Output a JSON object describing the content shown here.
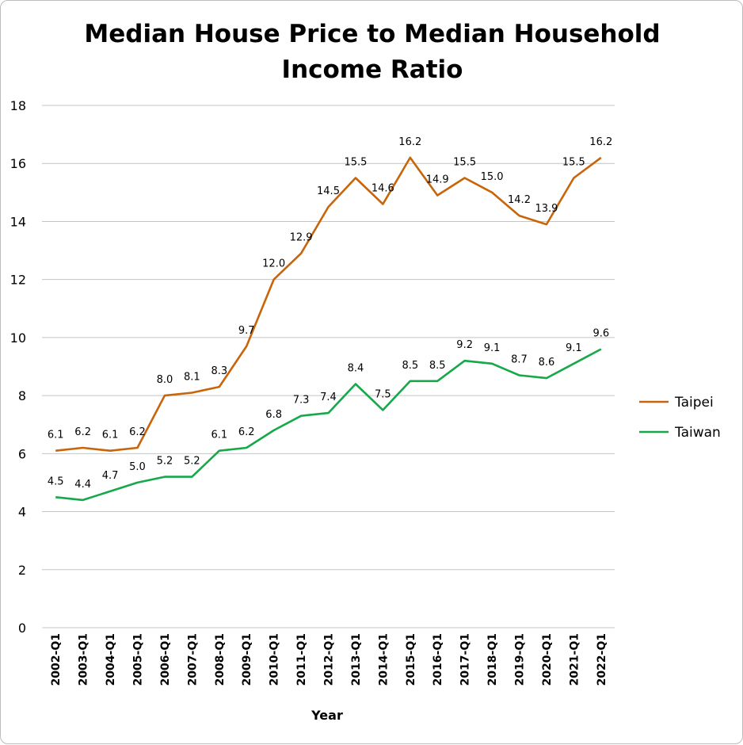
{
  "chart_data": {
    "type": "line",
    "title_lines": [
      "Median House Price to Median Household",
      "Income Ratio"
    ],
    "xlabel": "Year",
    "ylabel": "",
    "ylim": [
      0,
      18
    ],
    "yticks": [
      "0",
      "2",
      "4",
      "6",
      "8",
      "10",
      "12",
      "14",
      "16",
      "18"
    ],
    "grid": true,
    "legend_position": "right",
    "categories": [
      "2002-Q1",
      "2003-Q1",
      "2004-Q1",
      "2005-Q1",
      "2006-Q1",
      "2007-Q1",
      "2008-Q1",
      "2009-Q1",
      "2010-Q1",
      "2011-Q1",
      "2012-Q1",
      "2013-Q1",
      "2014-Q1",
      "2015-Q1",
      "2016-Q1",
      "2017-Q1",
      "2018-Q1",
      "2019-Q1",
      "2020-Q1",
      "2021-Q1",
      "2022-Q1"
    ],
    "series": [
      {
        "name": "Taipei",
        "color": "#c8650a",
        "values": [
          6.1,
          6.2,
          6.1,
          6.2,
          8.0,
          8.1,
          8.3,
          9.7,
          12.0,
          12.9,
          14.5,
          15.5,
          14.6,
          16.2,
          14.9,
          15.5,
          15.0,
          14.2,
          13.9,
          15.5,
          16.2
        ],
        "labels": [
          "6.1",
          "6.2",
          "6.1",
          "6.2",
          "8.0",
          "8.1",
          "8.3",
          "9.7",
          "12.0",
          "12.9",
          "14.5",
          "15.5",
          "14.6",
          "16.2",
          "14.9",
          "15.5",
          "15.0",
          "14.2",
          "13.9",
          "15.5",
          "16.2"
        ]
      },
      {
        "name": "Taiwan",
        "color": "#17a84a",
        "values": [
          4.5,
          4.4,
          4.7,
          5.0,
          5.2,
          5.2,
          6.1,
          6.2,
          6.8,
          7.3,
          7.4,
          8.4,
          7.5,
          8.5,
          8.5,
          9.2,
          9.1,
          8.7,
          8.6,
          9.1,
          9.6
        ],
        "labels": [
          "4.5",
          "4.4",
          "4.7",
          "5.0",
          "5.2",
          "5.2",
          "6.1",
          "6.2",
          "6.8",
          "7.3",
          "7.4",
          "8.4",
          "7.5",
          "8.5",
          "8.5",
          "9.2",
          "9.1",
          "8.7",
          "8.6",
          "9.1",
          "9.6"
        ]
      }
    ]
  }
}
